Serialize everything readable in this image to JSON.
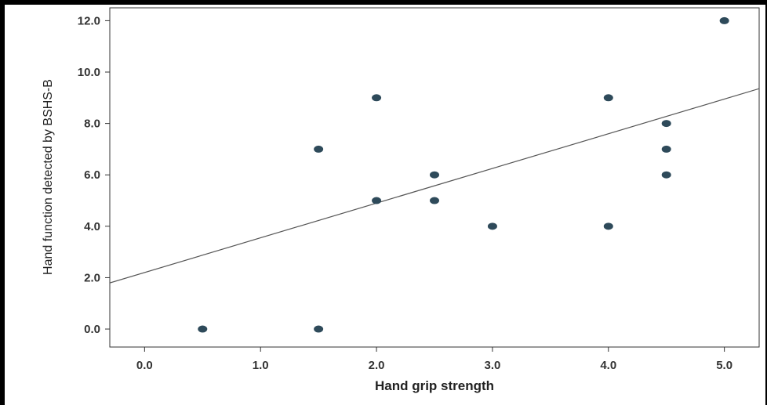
{
  "chart_data": {
    "type": "scatter",
    "title": "",
    "xlabel": "Hand grip strength",
    "ylabel": "Hand function detected by BSHS-B",
    "xlim": [
      -0.3,
      5.3
    ],
    "ylim": [
      -0.7,
      12.5
    ],
    "x_ticks": [
      "0.0",
      "1.0",
      "2.0",
      "3.0",
      "4.0",
      "5.0"
    ],
    "y_ticks": [
      "0.0",
      "2.0",
      "4.0",
      "6.0",
      "8.0",
      "10.0",
      "12.0"
    ],
    "grid": false,
    "points": [
      {
        "x": 0.5,
        "y": 0.0
      },
      {
        "x": 1.5,
        "y": 0.0
      },
      {
        "x": 1.5,
        "y": 7.0
      },
      {
        "x": 2.0,
        "y": 9.0
      },
      {
        "x": 2.0,
        "y": 5.0
      },
      {
        "x": 2.5,
        "y": 6.0
      },
      {
        "x": 2.5,
        "y": 5.0
      },
      {
        "x": 3.0,
        "y": 4.0
      },
      {
        "x": 4.0,
        "y": 9.0
      },
      {
        "x": 4.0,
        "y": 4.0
      },
      {
        "x": 4.5,
        "y": 8.0
      },
      {
        "x": 4.5,
        "y": 7.0
      },
      {
        "x": 4.5,
        "y": 6.0
      },
      {
        "x": 5.0,
        "y": 12.0
      }
    ],
    "fit_line": {
      "intercept": 2.2,
      "slope": 1.35
    },
    "colors": {
      "point": "#2e4a5a",
      "line": "#555555",
      "axis": "#333333"
    }
  }
}
